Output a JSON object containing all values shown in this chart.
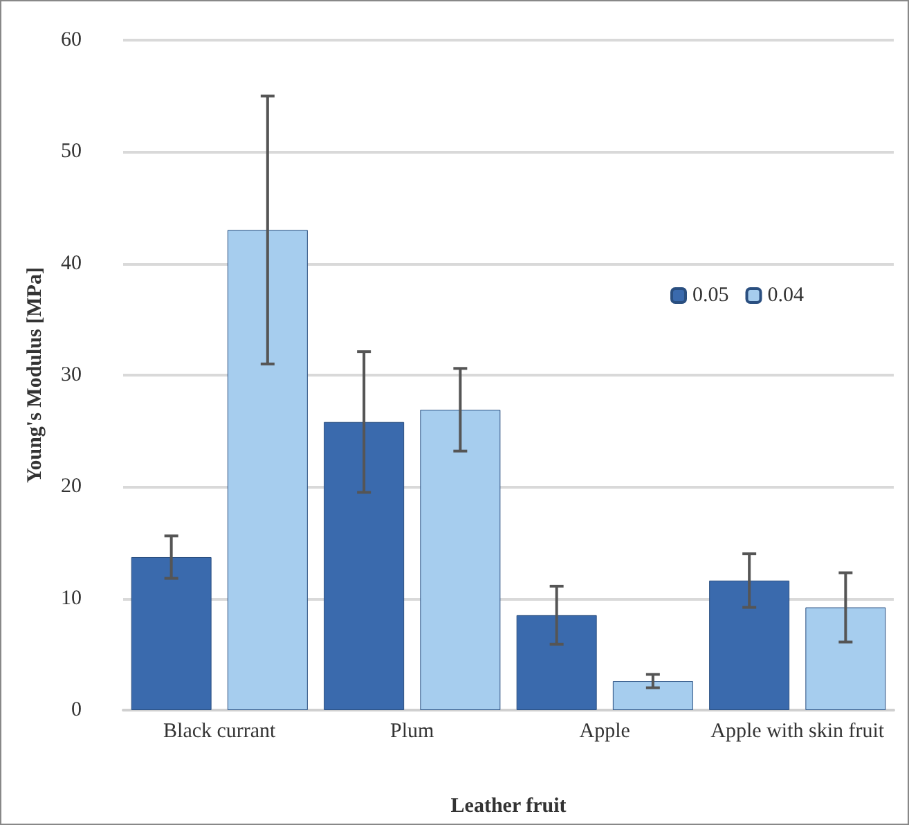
{
  "chart_data": {
    "type": "bar",
    "xlabel": "Leather fruit",
    "ylabel": "Young's Modulus [MPa]",
    "categories": [
      "Black currant",
      "Plum",
      "Apple",
      "Apple with skin fruit"
    ],
    "series": [
      {
        "name": "0.05",
        "color": "#3a6aad",
        "values": [
          13.7,
          25.8,
          8.5,
          11.6
        ],
        "errors": [
          1.9,
          6.3,
          2.6,
          2.4
        ]
      },
      {
        "name": "0.04",
        "color": "#a6cdee",
        "values": [
          43.0,
          26.9,
          2.6,
          9.2
        ],
        "errors": [
          12,
          3.7,
          0.6,
          3.1
        ]
      }
    ],
    "ylim": [
      0,
      60
    ],
    "yticks": [
      0,
      10,
      20,
      30,
      40,
      50,
      60
    ],
    "grid": "y",
    "legend": "top right"
  }
}
